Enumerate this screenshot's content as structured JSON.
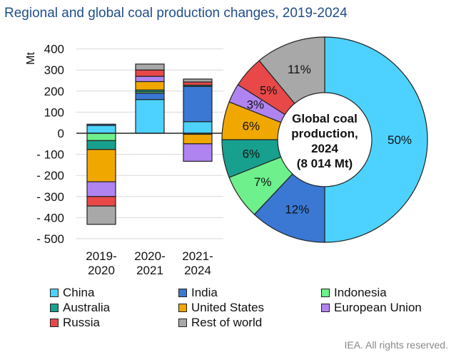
{
  "title": "Regional and global coal production changes, 2019-2024",
  "credit": "IEA. All rights reserved.",
  "chart_data": [
    {
      "type": "bar",
      "stacked": true,
      "ylabel": "Mt",
      "ylim": [
        -500,
        400
      ],
      "yticks": [
        400,
        300,
        200,
        100,
        0,
        -100,
        -200,
        -300,
        -400,
        -500
      ],
      "ytick_labels": [
        "400",
        "300",
        "200",
        "100",
        "0",
        "- 100",
        "- 200",
        "- 300",
        "- 400",
        "- 500"
      ],
      "categories": [
        [
          "2019-",
          "2020"
        ],
        [
          "2020-",
          "2021"
        ],
        [
          "2021-",
          "2024"
        ]
      ],
      "series": [
        {
          "name": "China",
          "color": "#4dd2ff",
          "values": [
            37,
            160,
            55
          ]
        },
        {
          "name": "India",
          "color": "#3a78d4",
          "values": [
            6,
            30,
            167
          ]
        },
        {
          "name": "Indonesia",
          "color": "#6ef08c",
          "values": [
            -35,
            7,
            -5
          ]
        },
        {
          "name": "Australia",
          "color": "#18a08e",
          "values": [
            -42,
            8,
            6
          ]
        },
        {
          "name": "United States",
          "color": "#f0a800",
          "values": [
            -153,
            40,
            -45
          ]
        },
        {
          "name": "European Union",
          "color": "#b084f0",
          "values": [
            -70,
            25,
            -83
          ]
        },
        {
          "name": "Russia",
          "color": "#e84848",
          "values": [
            -45,
            30,
            15
          ]
        },
        {
          "name": "Rest of world",
          "color": "#a8a8a8",
          "values": [
            -87,
            28,
            14
          ]
        }
      ]
    },
    {
      "type": "pie",
      "donut": true,
      "center_label": [
        "Global coal",
        "production,",
        "2024",
        "(8 014 Mt)"
      ],
      "slices": [
        {
          "name": "China",
          "value": 50,
          "label": "50%"
        },
        {
          "name": "India",
          "value": 12,
          "label": "12%"
        },
        {
          "name": "Indonesia",
          "value": 7,
          "label": "7%"
        },
        {
          "name": "Australia",
          "value": 6,
          "label": "6%"
        },
        {
          "name": "United States",
          "value": 6,
          "label": "6%"
        },
        {
          "name": "European Union",
          "value": 3,
          "label": "3%"
        },
        {
          "name": "Russia",
          "value": 5,
          "label": "5%"
        },
        {
          "name": "Rest of world",
          "value": 11,
          "label": "11%"
        }
      ]
    }
  ]
}
